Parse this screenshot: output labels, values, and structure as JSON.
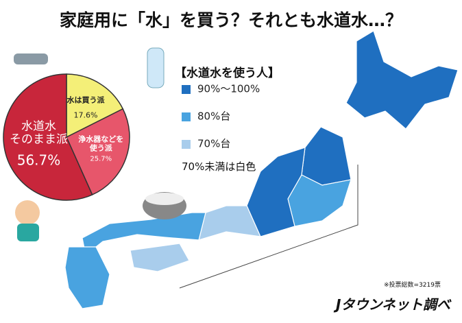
{
  "chart_data": {
    "type": "pie",
    "title": "家庭用に「水」を買う？それとも水道水…？",
    "categories": [
      "水は買う派",
      "浄水器などを\n使う派",
      "水道水\nそのまま派"
    ],
    "values": [
      17.6,
      25.7,
      56.7
    ],
    "value_labels": [
      "17.6%",
      "25.7%",
      "56.7%"
    ],
    "colors": [
      "#f4ef78",
      "#e7566b",
      "#c8263b"
    ]
  },
  "map_legend": {
    "title": "【水道水を使う人】",
    "items": [
      {
        "label": "90%〜100%",
        "color": "#1f6fc0"
      },
      {
        "label": "80%台",
        "color": "#49a3e0"
      },
      {
        "label": "70%台",
        "color": "#a9cdec"
      }
    ],
    "note": "70%未満は白色"
  },
  "footer": {
    "note": "※投票総数=3219票",
    "source": "Jタウンネット調べ"
  }
}
